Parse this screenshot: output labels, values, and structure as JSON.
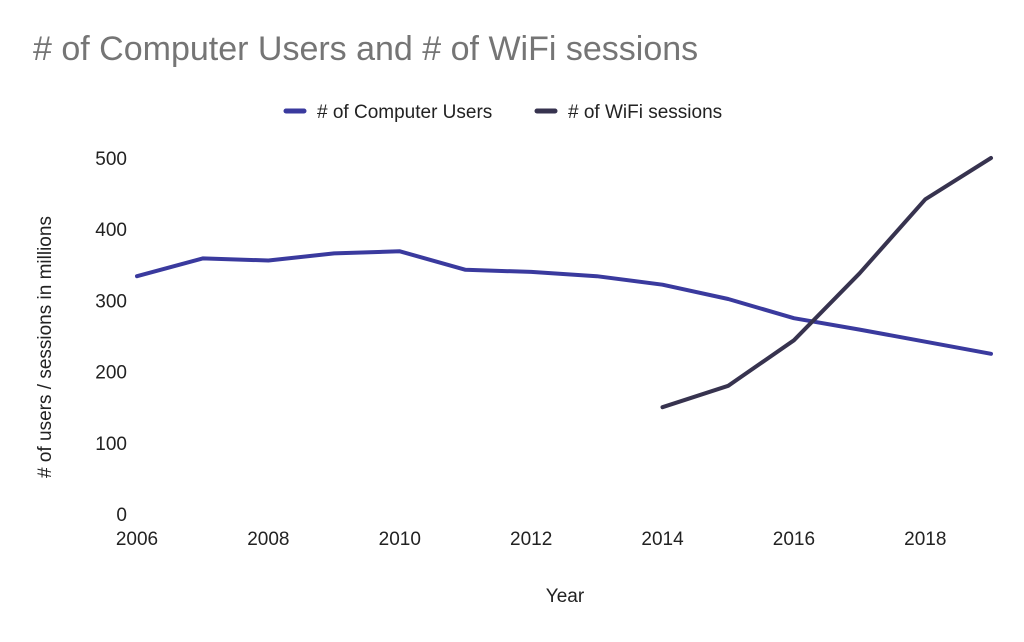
{
  "chart_data": {
    "type": "line",
    "title": "# of Computer Users and # of WiFi sessions",
    "xlabel": "Year",
    "ylabel": "# of users / sessions in millions",
    "x_ticks": [
      2006,
      2008,
      2010,
      2012,
      2014,
      2016,
      2018
    ],
    "y_ticks": [
      0,
      100,
      200,
      300,
      400,
      500
    ],
    "xlim": [
      2006,
      2019
    ],
    "ylim": [
      0,
      500
    ],
    "grid": false,
    "legend_position": "top-center",
    "series": [
      {
        "name": "# of Computer Users",
        "color": "#3a3a9e",
        "x": [
          2006,
          2007,
          2008,
          2009,
          2010,
          2011,
          2012,
          2013,
          2014,
          2015,
          2016,
          2017,
          2018,
          2019
        ],
        "y": [
          334,
          359,
          356,
          366,
          369,
          343,
          340,
          334,
          322,
          302,
          275,
          259,
          242,
          225
        ]
      },
      {
        "name": "# of WiFi sessions",
        "color": "#37334f",
        "x": [
          2014,
          2015,
          2016,
          2017,
          2018,
          2019
        ],
        "y": [
          150,
          180,
          244,
          338,
          442,
          500
        ]
      }
    ]
  }
}
